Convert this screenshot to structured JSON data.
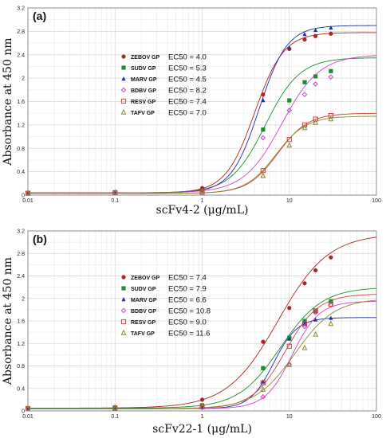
{
  "chart_data": [
    {
      "type": "line",
      "panel_label": "(a)",
      "xlabel": "scFv4-2 (μg/mL)",
      "ylabel": "Absorbance at 450 nm",
      "x_scale": "log",
      "xlim": [
        0.01,
        100
      ],
      "ylim": [
        0,
        3.2
      ],
      "x_ticks": [
        "0.01",
        "0.1",
        "1",
        "10",
        "100"
      ],
      "y_ticks": [
        "0",
        "0.4",
        "0.8",
        "1.2",
        "1.6",
        "2",
        "2.4",
        "2.8",
        "3.2"
      ],
      "grid": true,
      "legend_position": "center-left",
      "series": [
        {
          "name": "ZEBOV GP",
          "ec50_label": "EC50 = 4.0",
          "color": "#b22222",
          "marker": "circle",
          "curve": {
            "bottom": 0.04,
            "top": 2.78,
            "ec50": 4.0,
            "hill": 2.6
          },
          "points": [
            [
              0.01,
              0.04
            ],
            [
              0.1,
              0.05
            ],
            [
              1,
              0.12
            ],
            [
              5,
              1.72
            ],
            [
              10,
              2.5
            ],
            [
              15,
              2.66
            ],
            [
              20,
              2.72
            ],
            [
              30,
              2.76
            ]
          ]
        },
        {
          "name": "SUDV GP",
          "ec50_label": "EC50 = 5.3",
          "color": "#1e8c2e",
          "marker": "square",
          "curve": {
            "bottom": 0.04,
            "top": 2.35,
            "ec50": 5.3,
            "hill": 2.2
          },
          "points": [
            [
              0.01,
              0.04
            ],
            [
              0.1,
              0.05
            ],
            [
              1,
              0.08
            ],
            [
              5,
              1.12
            ],
            [
              10,
              1.62
            ],
            [
              15,
              1.93
            ],
            [
              20,
              2.03
            ],
            [
              30,
              2.12
            ]
          ]
        },
        {
          "name": "MARV GP",
          "ec50_label": "EC50 = 4.5",
          "color": "#1f2fa8",
          "marker": "triangle",
          "curve": {
            "bottom": 0.04,
            "top": 2.9,
            "ec50": 4.5,
            "hill": 2.7
          },
          "points": [
            [
              0.01,
              0.04
            ],
            [
              0.1,
              0.05
            ],
            [
              1,
              0.09
            ],
            [
              5,
              1.62
            ],
            [
              10,
              2.52
            ],
            [
              15,
              2.75
            ],
            [
              20,
              2.82
            ],
            [
              30,
              2.86
            ]
          ]
        },
        {
          "name": "BDBV GP",
          "ec50_label": "EC50 = 8.2",
          "color": "#cc44cc",
          "marker": "diamond",
          "curve": {
            "bottom": 0.04,
            "top": 2.4,
            "ec50": 8.2,
            "hill": 2.0
          },
          "points": [
            [
              0.01,
              0.04
            ],
            [
              0.1,
              0.05
            ],
            [
              1,
              0.07
            ],
            [
              5,
              0.98
            ],
            [
              10,
              1.45
            ],
            [
              15,
              1.72
            ],
            [
              20,
              1.9
            ],
            [
              30,
              2.02
            ]
          ]
        },
        {
          "name": "RESV GP",
          "ec50_label": "EC50 = 7.4",
          "color": "#d04040",
          "marker": "square-open",
          "curve": {
            "bottom": 0.03,
            "top": 1.4,
            "ec50": 7.4,
            "hill": 2.5
          },
          "points": [
            [
              0.01,
              0.03
            ],
            [
              0.1,
              0.04
            ],
            [
              1,
              0.05
            ],
            [
              5,
              0.42
            ],
            [
              10,
              0.95
            ],
            [
              15,
              1.2
            ],
            [
              20,
              1.3
            ],
            [
              30,
              1.36
            ]
          ]
        },
        {
          "name": "TAFV GP",
          "ec50_label": "EC50 = 7.0",
          "color": "#8a8a30",
          "marker": "triangle-open",
          "curve": {
            "bottom": 0.03,
            "top": 1.35,
            "ec50": 7.0,
            "hill": 2.5
          },
          "points": [
            [
              0.01,
              0.03
            ],
            [
              0.1,
              0.04
            ],
            [
              1,
              0.05
            ],
            [
              5,
              0.33
            ],
            [
              10,
              0.85
            ],
            [
              15,
              1.15
            ],
            [
              20,
              1.24
            ],
            [
              30,
              1.3
            ]
          ]
        }
      ]
    },
    {
      "type": "line",
      "panel_label": "(b)",
      "xlabel": "scFv22-1 (μg/mL)",
      "ylabel": "Absorbance at 450 nm",
      "x_scale": "log",
      "xlim": [
        0.01,
        100
      ],
      "ylim": [
        0,
        3.2
      ],
      "x_ticks": [
        "0.01",
        "0.1",
        "1",
        "10",
        "100"
      ],
      "y_ticks": [
        "0",
        "0.4",
        "0.8",
        "1.2",
        "1.6",
        "2",
        "2.4",
        "2.8",
        "3.2"
      ],
      "grid": true,
      "legend_position": "center-left",
      "series": [
        {
          "name": "ZEBOV GP",
          "ec50_label": "EC50 = 7.4",
          "color": "#b22222",
          "marker": "circle",
          "curve": {
            "bottom": 0.05,
            "top": 3.15,
            "ec50": 7.4,
            "hill": 1.5
          },
          "points": [
            [
              0.01,
              0.05
            ],
            [
              0.1,
              0.07
            ],
            [
              1,
              0.2
            ],
            [
              5,
              1.23
            ],
            [
              10,
              1.83
            ],
            [
              15,
              2.27
            ],
            [
              20,
              2.5
            ],
            [
              30,
              2.73
            ]
          ]
        },
        {
          "name": "SUDV GP",
          "ec50_label": "EC50 = 7.9",
          "color": "#1e8c2e",
          "marker": "square",
          "curve": {
            "bottom": 0.05,
            "top": 2.2,
            "ec50": 7.9,
            "hill": 1.8
          },
          "points": [
            [
              0.01,
              0.05
            ],
            [
              0.1,
              0.06
            ],
            [
              1,
              0.1
            ],
            [
              5,
              0.76
            ],
            [
              10,
              1.3
            ],
            [
              15,
              1.6
            ],
            [
              20,
              1.77
            ],
            [
              30,
              1.95
            ]
          ]
        },
        {
          "name": "MARV GP",
          "ec50_label": "EC50 = 6.6",
          "color": "#1f2fa8",
          "marker": "triangle",
          "curve": {
            "bottom": 0.04,
            "top": 1.66,
            "ec50": 6.6,
            "hill": 3.2
          },
          "points": [
            [
              0.01,
              0.04
            ],
            [
              0.1,
              0.05
            ],
            [
              1,
              0.06
            ],
            [
              5,
              0.52
            ],
            [
              10,
              1.28
            ],
            [
              15,
              1.55
            ],
            [
              20,
              1.62
            ],
            [
              30,
              1.65
            ]
          ]
        },
        {
          "name": "BDBV GP",
          "ec50_label": "EC50 = 10.8",
          "color": "#cc44cc",
          "marker": "diamond",
          "curve": {
            "bottom": 0.04,
            "top": 1.95,
            "ec50": 10.8,
            "hill": 2.8
          },
          "points": [
            [
              0.01,
              0.04
            ],
            [
              0.1,
              0.05
            ],
            [
              1,
              0.06
            ],
            [
              5,
              0.25
            ],
            [
              10,
              0.83
            ],
            [
              15,
              1.5
            ],
            [
              20,
              1.75
            ],
            [
              30,
              1.88
            ]
          ]
        },
        {
          "name": "RESV GP",
          "ec50_label": "EC50 = 9.0",
          "color": "#d04040",
          "marker": "square-open",
          "curve": {
            "bottom": 0.04,
            "top": 2.08,
            "ec50": 9.0,
            "hill": 2.3
          },
          "points": [
            [
              0.01,
              0.04
            ],
            [
              0.1,
              0.05
            ],
            [
              1,
              0.07
            ],
            [
              5,
              0.5
            ],
            [
              10,
              1.15
            ],
            [
              15,
              1.55
            ],
            [
              20,
              1.78
            ],
            [
              30,
              1.9
            ]
          ]
        },
        {
          "name": "TAFV GP",
          "ec50_label": "EC50 = 11.6",
          "color": "#8a8a30",
          "marker": "triangle-open",
          "curve": {
            "bottom": 0.04,
            "top": 2.0,
            "ec50": 11.6,
            "hill": 1.9
          },
          "points": [
            [
              0.01,
              0.04
            ],
            [
              0.1,
              0.05
            ],
            [
              1,
              0.07
            ],
            [
              5,
              0.38
            ],
            [
              10,
              0.82
            ],
            [
              15,
              1.12
            ],
            [
              20,
              1.36
            ],
            [
              30,
              1.55
            ]
          ]
        }
      ]
    }
  ]
}
